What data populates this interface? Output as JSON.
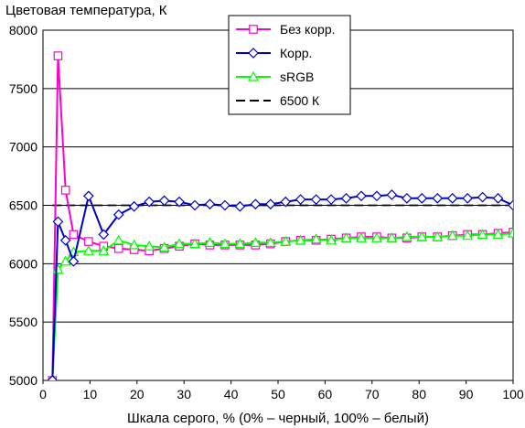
{
  "chart_data": {
    "type": "line",
    "ylabel": "Цветовая температура, К",
    "xlabel": "Шкала серого, % (0% – черный, 100% – белый)",
    "xlim": [
      0,
      100
    ],
    "ylim": [
      5000,
      8000
    ],
    "xticks": [
      0,
      10,
      20,
      30,
      40,
      50,
      60,
      70,
      80,
      90,
      100
    ],
    "yticks": [
      5000,
      5500,
      6000,
      6500,
      7000,
      7500,
      8000
    ],
    "grid": "horizontal",
    "legend_position": "top-center",
    "x": [
      2,
      3.2,
      4.8,
      6.5,
      9.7,
      12.9,
      16.1,
      19.4,
      22.6,
      25.8,
      29,
      32.3,
      35.5,
      38.7,
      41.9,
      45.2,
      48.4,
      51.6,
      54.8,
      58.1,
      61.3,
      64.5,
      67.7,
      71,
      74.2,
      77.4,
      80.6,
      83.9,
      87.1,
      90.3,
      93.5,
      96.8,
      100
    ],
    "series": [
      {
        "name": "Без корр.",
        "color": "#ff00cc",
        "marker": "square",
        "values": [
          5000,
          7780,
          6630,
          6250,
          6190,
          6150,
          6130,
          6120,
          6110,
          6130,
          6150,
          6170,
          6160,
          6160,
          6160,
          6160,
          6170,
          6190,
          6200,
          6200,
          6210,
          6220,
          6230,
          6230,
          6220,
          6220,
          6230,
          6230,
          6240,
          6250,
          6250,
          6260,
          6270
        ]
      },
      {
        "name": "Корр.",
        "color": "#0000cc",
        "marker": "diamond",
        "values": [
          5000,
          6360,
          6200,
          6020,
          6580,
          6250,
          6420,
          6490,
          6530,
          6540,
          6530,
          6500,
          6510,
          6500,
          6490,
          6510,
          6510,
          6530,
          6550,
          6550,
          6550,
          6560,
          6580,
          6580,
          6590,
          6560,
          6560,
          6560,
          6560,
          6560,
          6570,
          6560,
          6500
        ]
      },
      {
        "name": "sRGB",
        "color": "#00ff00",
        "marker": "triangle",
        "values": [
          5000,
          5950,
          6020,
          6100,
          6110,
          6110,
          6200,
          6160,
          6150,
          6140,
          6170,
          6170,
          6180,
          6170,
          6170,
          6180,
          6180,
          6190,
          6200,
          6210,
          6200,
          6220,
          6220,
          6220,
          6220,
          6230,
          6230,
          6230,
          6240,
          6240,
          6250,
          6250,
          6260
        ]
      },
      {
        "name": "6500 К",
        "color": "#000000",
        "marker": "none",
        "dashed": true,
        "values": [
          6500,
          6500,
          6500,
          6500,
          6500,
          6500,
          6500,
          6500,
          6500,
          6500,
          6500,
          6500,
          6500,
          6500,
          6500,
          6500,
          6500,
          6500,
          6500,
          6500,
          6500,
          6500,
          6500,
          6500,
          6500,
          6500,
          6500,
          6500,
          6500,
          6500,
          6500,
          6500,
          6500
        ]
      }
    ]
  }
}
